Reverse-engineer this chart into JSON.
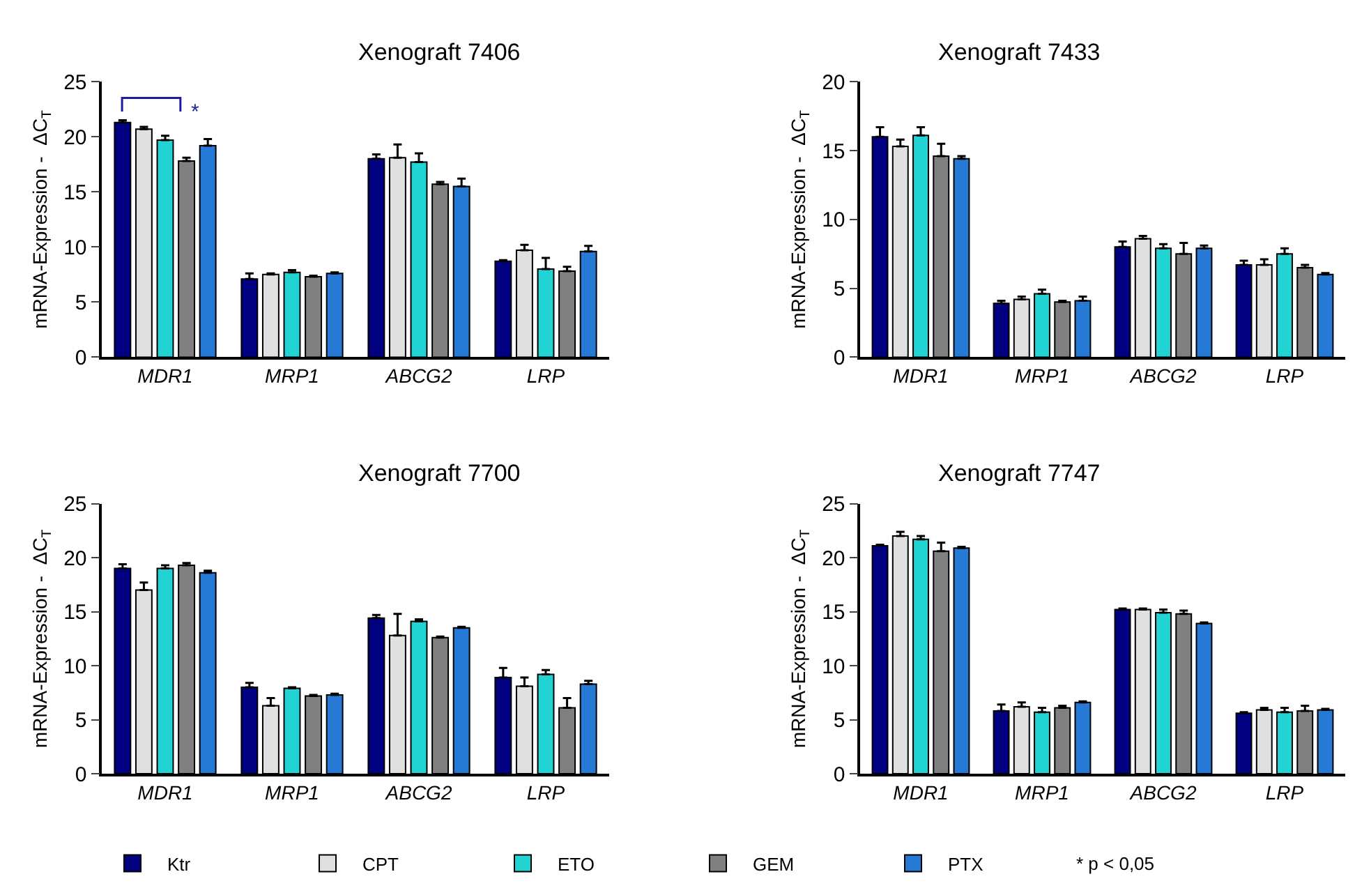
{
  "chart_data": [
    {
      "type": "bar",
      "title": "Xenograft 7406",
      "ylabel": "mRNA-Expression -  ΔC$_{T}$",
      "categories": [
        "MDR1",
        "MRP1",
        "ABCG2",
        "LRP"
      ],
      "ylim": [
        0,
        25
      ],
      "yticks": [
        0,
        5,
        10,
        15,
        20,
        25
      ],
      "legend": "bottom",
      "annotations": [
        "*",
        "* p < 0,05"
      ],
      "series": [
        {
          "name": "Ktr",
          "color": "#000080",
          "values": [
            21.3,
            7.1,
            18.0,
            8.7
          ],
          "errors": [
            [
              21.3,
              21.5
            ],
            [
              7.1,
              7.6
            ],
            [
              18.0,
              18.4
            ],
            [
              8.7,
              8.8
            ]
          ]
        },
        {
          "name": "CPT",
          "color": "#e0e0e0",
          "values": [
            20.7,
            7.5,
            18.1,
            9.7
          ],
          "errors": [
            [
              20.7,
              20.9
            ],
            [
              7.5,
              7.6
            ],
            [
              18.1,
              19.3
            ],
            [
              9.7,
              10.2
            ]
          ]
        },
        {
          "name": "ETO",
          "color": "#22d3d3",
          "values": [
            19.7,
            7.7,
            17.7,
            8.0
          ],
          "errors": [
            [
              19.7,
              20.1
            ],
            [
              7.7,
              7.9
            ],
            [
              17.7,
              18.5
            ],
            [
              8.0,
              9.0
            ]
          ]
        },
        {
          "name": "GEM",
          "color": "#808080",
          "values": [
            17.8,
            7.3,
            15.7,
            7.8
          ],
          "errors": [
            [
              17.8,
              18.1
            ],
            [
              7.3,
              7.4
            ],
            [
              15.7,
              15.9
            ],
            [
              7.8,
              8.2
            ]
          ]
        },
        {
          "name": "PTX",
          "color": "#2679d4",
          "values": [
            19.2,
            7.6,
            15.5,
            9.6
          ],
          "errors": [
            [
              19.2,
              19.8
            ],
            [
              7.6,
              7.7
            ],
            [
              15.5,
              16.2
            ],
            [
              9.6,
              10.1
            ]
          ]
        }
      ]
    },
    {
      "type": "bar",
      "title": "Xenograft 7433",
      "ylabel": "mRNA-Expression -  ΔC$_{T}$",
      "categories": [
        "MDR1",
        "MRP1",
        "ABCG2",
        "LRP"
      ],
      "ylim": [
        0,
        20
      ],
      "yticks": [
        0,
        5,
        10,
        15,
        20
      ],
      "series": [
        {
          "color": "#000080",
          "values": [
            16.0,
            3.9,
            8.0,
            6.7
          ],
          "errors": [
            [
              16.0,
              16.7
            ],
            [
              3.9,
              4.1
            ],
            [
              8.0,
              8.4
            ],
            [
              6.7,
              7.0
            ]
          ]
        },
        {
          "color": "#e0e0e0",
          "values": [
            15.3,
            4.2,
            8.6,
            6.7
          ],
          "errors": [
            [
              15.3,
              15.8
            ],
            [
              4.2,
              4.4
            ],
            [
              8.6,
              8.8
            ],
            [
              6.7,
              7.1
            ]
          ]
        },
        {
          "color": "#22d3d3",
          "values": [
            16.1,
            4.6,
            7.9,
            7.5
          ],
          "errors": [
            [
              16.1,
              16.7
            ],
            [
              4.6,
              4.9
            ],
            [
              7.9,
              8.2
            ],
            [
              7.5,
              7.9
            ]
          ]
        },
        {
          "color": "#808080",
          "values": [
            14.6,
            4.0,
            7.5,
            6.5
          ],
          "errors": [
            [
              14.6,
              15.5
            ],
            [
              4.0,
              4.1
            ],
            [
              7.5,
              8.3
            ],
            [
              6.5,
              6.7
            ]
          ]
        },
        {
          "color": "#2679d4",
          "values": [
            14.4,
            4.1,
            7.9,
            6.0
          ],
          "errors": [
            [
              14.4,
              14.6
            ],
            [
              4.1,
              4.4
            ],
            [
              7.9,
              8.1
            ],
            [
              6.0,
              6.1
            ]
          ]
        }
      ]
    },
    {
      "type": "bar",
      "title": "Xenograft 7700",
      "ylabel": "mRNA-Expression -  ΔC$_{T}$",
      "categories": [
        "MDR1",
        "MRP1",
        "ABCG2",
        "LRP"
      ],
      "ylim": [
        0,
        25
      ],
      "yticks": [
        0,
        5,
        10,
        15,
        20,
        25
      ],
      "series": [
        {
          "color": "#000080",
          "values": [
            19.0,
            8.0,
            14.4,
            8.9
          ],
          "errors": [
            [
              19.0,
              19.4
            ],
            [
              8.0,
              8.4
            ],
            [
              14.4,
              14.7
            ],
            [
              8.9,
              9.8
            ]
          ]
        },
        {
          "color": "#e0e0e0",
          "values": [
            17.0,
            6.3,
            12.8,
            8.1
          ],
          "errors": [
            [
              17.0,
              17.7
            ],
            [
              6.3,
              7.0
            ],
            [
              12.8,
              14.8
            ],
            [
              8.1,
              8.9
            ]
          ]
        },
        {
          "color": "#22d3d3",
          "values": [
            19.0,
            7.9,
            14.1,
            9.2
          ],
          "errors": [
            [
              19.0,
              19.3
            ],
            [
              7.9,
              8.0
            ],
            [
              14.1,
              14.3
            ],
            [
              9.2,
              9.6
            ]
          ]
        },
        {
          "color": "#808080",
          "values": [
            19.3,
            7.2,
            12.6,
            6.1
          ],
          "errors": [
            [
              19.3,
              19.5
            ],
            [
              7.2,
              7.3
            ],
            [
              12.6,
              12.7
            ],
            [
              6.1,
              7.0
            ]
          ]
        },
        {
          "color": "#2679d4",
          "values": [
            18.6,
            7.3,
            13.5,
            8.3
          ],
          "errors": [
            [
              18.6,
              18.8
            ],
            [
              7.3,
              7.4
            ],
            [
              13.5,
              13.6
            ],
            [
              8.3,
              8.6
            ]
          ]
        }
      ]
    },
    {
      "type": "bar",
      "title": "Xenograft 7747",
      "ylabel": "mRNA-Expression -  ΔC$_{T}$",
      "categories": [
        "MDR1",
        "MRP1",
        "ABCG2",
        "LRP"
      ],
      "ylim": [
        0,
        25
      ],
      "yticks": [
        0,
        5,
        10,
        15,
        20,
        25
      ],
      "series": [
        {
          "color": "#000080",
          "values": [
            21.1,
            5.8,
            15.2,
            5.6
          ],
          "errors": [
            [
              21.1,
              21.2
            ],
            [
              5.8,
              6.4
            ],
            [
              15.2,
              15.3
            ],
            [
              5.6,
              5.7
            ]
          ]
        },
        {
          "color": "#e0e0e0",
          "values": [
            22.0,
            6.2,
            15.2,
            5.9
          ],
          "errors": [
            [
              22.0,
              22.4
            ],
            [
              6.2,
              6.6
            ],
            [
              15.2,
              15.3
            ],
            [
              5.9,
              6.1
            ]
          ]
        },
        {
          "color": "#22d3d3",
          "values": [
            21.7,
            5.7,
            14.9,
            5.7
          ],
          "errors": [
            [
              21.7,
              22.0
            ],
            [
              5.7,
              6.1
            ],
            [
              14.9,
              15.2
            ],
            [
              5.7,
              6.1
            ]
          ]
        },
        {
          "color": "#808080",
          "values": [
            20.6,
            6.1,
            14.8,
            5.8
          ],
          "errors": [
            [
              20.6,
              21.4
            ],
            [
              6.1,
              6.3
            ],
            [
              14.8,
              15.1
            ],
            [
              5.8,
              6.3
            ]
          ]
        },
        {
          "color": "#2679d4",
          "values": [
            20.9,
            6.6,
            13.9,
            5.9
          ],
          "errors": [
            [
              20.9,
              21.0
            ],
            [
              6.6,
              6.7
            ],
            [
              13.9,
              14.0
            ],
            [
              5.9,
              6.0
            ]
          ]
        }
      ]
    }
  ]
}
